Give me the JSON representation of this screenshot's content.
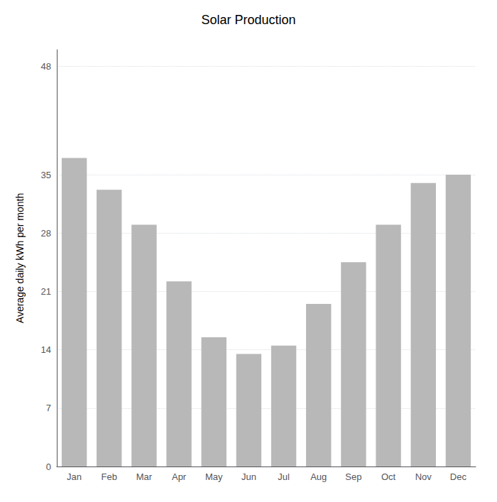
{
  "chart_data": {
    "type": "bar",
    "title": "Solar Production",
    "ylabel": "Average daily kWh per month",
    "categories": [
      "Jan",
      "Feb",
      "Mar",
      "Apr",
      "May",
      "Jun",
      "Jul",
      "Aug",
      "Sep",
      "Oct",
      "Nov",
      "Dec"
    ],
    "values": [
      37.0,
      33.2,
      29.0,
      22.2,
      15.5,
      13.5,
      14.5,
      19.5,
      24.5,
      29.0,
      34.0,
      35.0
    ],
    "color": "#b8b8b8",
    "ylim": [
      0,
      50
    ],
    "yticks": [
      0,
      7,
      14,
      21,
      28,
      35,
      48
    ],
    "grid": true
  }
}
